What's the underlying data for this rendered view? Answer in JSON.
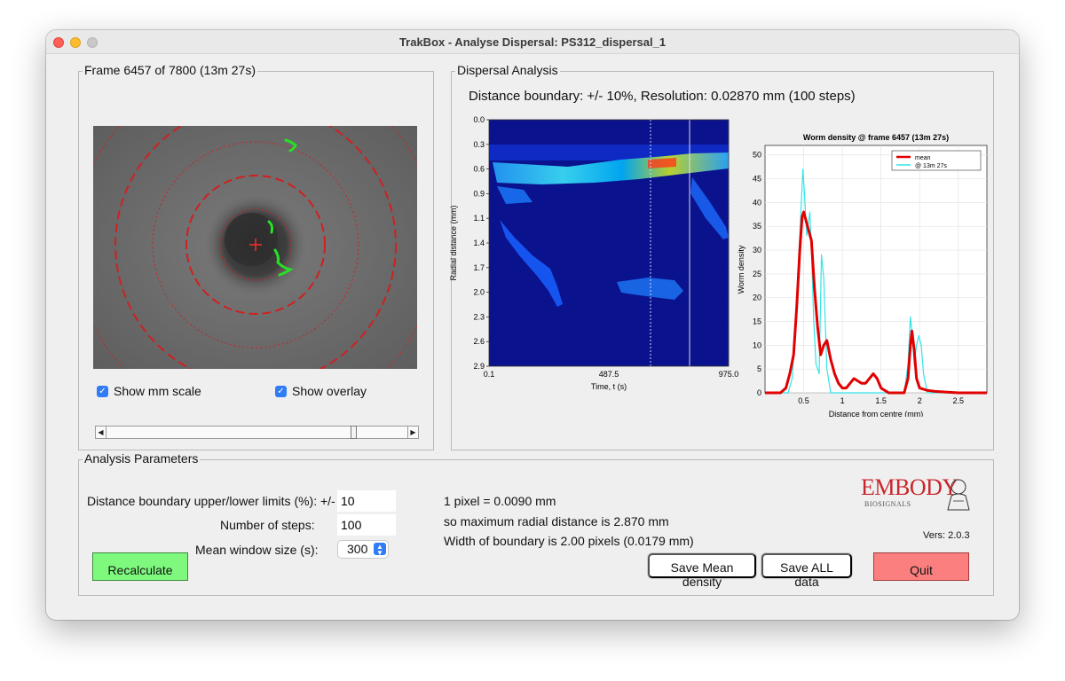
{
  "window": {
    "title": "TrakBox - Analyse Dispersal: PS312_dispersal_1"
  },
  "frame_panel": {
    "title": "Frame 6457 of 7800 (13m 27s)",
    "show_mm_scale": {
      "label": "Show mm scale",
      "checked": true
    },
    "show_overlay": {
      "label": "Show overlay",
      "checked": true
    },
    "slider": {
      "frame": 6457,
      "min": 1,
      "max": 7800
    }
  },
  "dispersal_panel": {
    "title": "Dispersal Analysis",
    "summary": "Distance boundary: +/- 10%, Resolution: 0.02870 mm (100 steps)"
  },
  "heatmap": {
    "ylabel": "Radial distance (mm)",
    "xlabel": "Time, t (s)",
    "y_ticks": [
      "0.0",
      "0.3",
      "0.6",
      "0.9",
      "1.1",
      "1.4",
      "1.7",
      "2.0",
      "2.3",
      "2.6",
      "2.9"
    ],
    "x_ticks": [
      "0.1",
      "487.5",
      "975.0"
    ]
  },
  "chart_data": {
    "type": "line",
    "title": "Worm density @ frame 6457 (13m 27s)",
    "xlabel": "Distance from centre (mm)",
    "ylabel": "Worm density",
    "xlim": [
      0,
      2.87
    ],
    "ylim": [
      0,
      52
    ],
    "x_ticks": [
      0.5,
      1,
      1.5,
      2,
      2.5
    ],
    "y_ticks": [
      0,
      5,
      10,
      15,
      20,
      25,
      30,
      35,
      40,
      45,
      50
    ],
    "legend_position": "top-right",
    "series": [
      {
        "name": "mean",
        "color": "#e00000",
        "points": [
          [
            0,
            0
          ],
          [
            0.1,
            0
          ],
          [
            0.2,
            0
          ],
          [
            0.27,
            1
          ],
          [
            0.32,
            4
          ],
          [
            0.37,
            8
          ],
          [
            0.41,
            18
          ],
          [
            0.45,
            30
          ],
          [
            0.48,
            37
          ],
          [
            0.5,
            38
          ],
          [
            0.55,
            35
          ],
          [
            0.6,
            32
          ],
          [
            0.64,
            22
          ],
          [
            0.68,
            14
          ],
          [
            0.72,
            8
          ],
          [
            0.76,
            10
          ],
          [
            0.8,
            11
          ],
          [
            0.85,
            7
          ],
          [
            0.9,
            4
          ],
          [
            0.95,
            2
          ],
          [
            1.0,
            1
          ],
          [
            1.05,
            1
          ],
          [
            1.1,
            2
          ],
          [
            1.15,
            3
          ],
          [
            1.2,
            2.5
          ],
          [
            1.25,
            2
          ],
          [
            1.3,
            2
          ],
          [
            1.35,
            3
          ],
          [
            1.4,
            4
          ],
          [
            1.45,
            3
          ],
          [
            1.5,
            1
          ],
          [
            1.55,
            0.5
          ],
          [
            1.6,
            0
          ],
          [
            1.7,
            0
          ],
          [
            1.8,
            0
          ],
          [
            1.85,
            3
          ],
          [
            1.88,
            10
          ],
          [
            1.9,
            13
          ],
          [
            1.93,
            9
          ],
          [
            1.96,
            3
          ],
          [
            2.0,
            1
          ],
          [
            2.1,
            0.5
          ],
          [
            2.2,
            0.3
          ],
          [
            2.5,
            0
          ],
          [
            2.87,
            0
          ]
        ]
      },
      {
        "name": "@ 13m 27s",
        "color": "#35e3e6",
        "points": [
          [
            0,
            0
          ],
          [
            0.3,
            0
          ],
          [
            0.35,
            3
          ],
          [
            0.4,
            14
          ],
          [
            0.44,
            30
          ],
          [
            0.47,
            40
          ],
          [
            0.49,
            47
          ],
          [
            0.51,
            42
          ],
          [
            0.54,
            33
          ],
          [
            0.58,
            38
          ],
          [
            0.6,
            30
          ],
          [
            0.63,
            15
          ],
          [
            0.66,
            6
          ],
          [
            0.7,
            4
          ],
          [
            0.73,
            29
          ],
          [
            0.76,
            24
          ],
          [
            0.8,
            5
          ],
          [
            0.85,
            0
          ],
          [
            1.0,
            0
          ],
          [
            1.5,
            0
          ],
          [
            1.8,
            0
          ],
          [
            1.85,
            6
          ],
          [
            1.88,
            16
          ],
          [
            1.9,
            13
          ],
          [
            1.93,
            6
          ],
          [
            1.96,
            10
          ],
          [
            1.99,
            12
          ],
          [
            2.02,
            10
          ],
          [
            2.05,
            4
          ],
          [
            2.1,
            0
          ],
          [
            2.87,
            0
          ]
        ]
      }
    ]
  },
  "params_panel": {
    "title": "Analysis Parameters",
    "boundary_label": "Distance boundary upper/lower limits (%): +/-",
    "boundary_value": "10",
    "steps_label": "Number of steps:",
    "steps_value": "100",
    "mean_window_label": "Mean window size (s):",
    "mean_window_value": "300",
    "recalculate": "Recalculate",
    "pixel_info": "1 pixel = 0.0090 mm",
    "max_radial_info": "so maximum radial distance is 2.870 mm",
    "boundary_width_info": "Width of boundary is 2.00 pixels (0.0179 mm)",
    "save_mean": "Save Mean density",
    "save_all": "Save ALL data",
    "quit": "Quit",
    "logo_main": "EMBODY",
    "logo_sub": "BIOSIGNALS",
    "version": "Vers: 2.0.3"
  },
  "colors": {
    "window_bg": "#efefef",
    "recalc_bg": "#7ef97e",
    "quit_bg": "#fc7f7f",
    "mean_line": "#e00000",
    "current_line": "#35e3e6",
    "logo_red": "#c8262c"
  }
}
